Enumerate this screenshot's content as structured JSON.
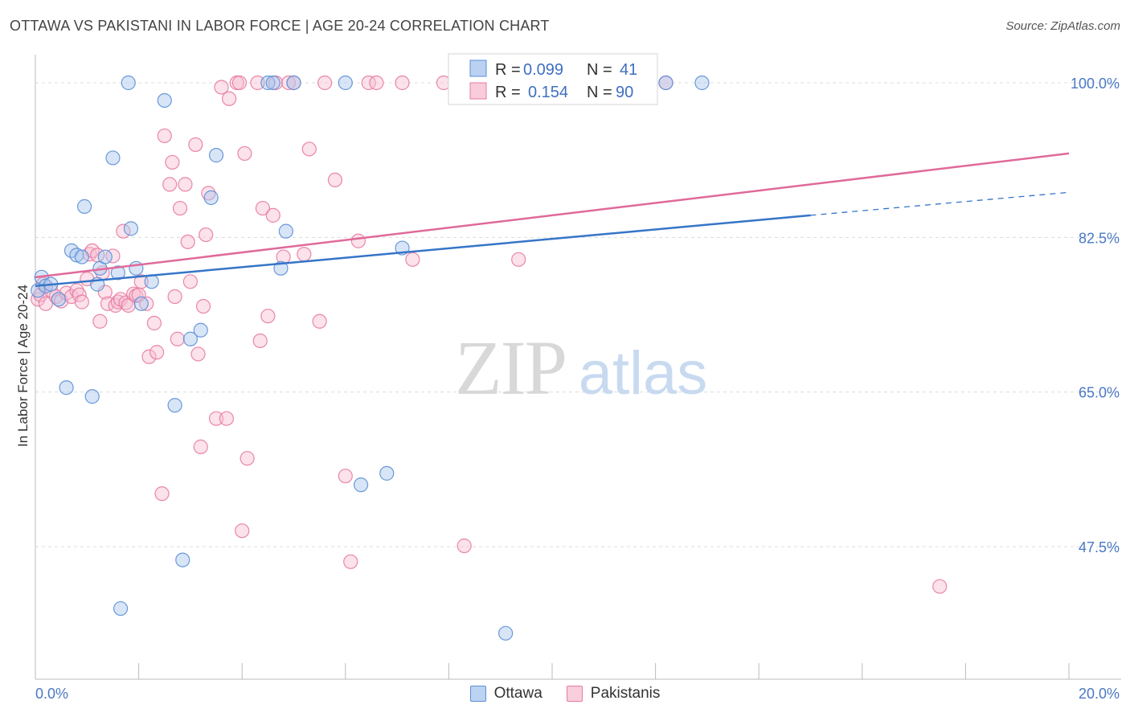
{
  "title": "OTTAWA VS PAKISTANI IN LABOR FORCE | AGE 20-24 CORRELATION CHART",
  "source": "Source: ZipAtlas.com",
  "watermark": {
    "zip": "ZIP",
    "atlas": "atlas"
  },
  "colors": {
    "ottawa": "#5b8fd6",
    "ottawa_fill": "#a9c6ee",
    "pakistanis": "#e87aa0",
    "pakistanis_fill": "#f6bfd2",
    "ottawa_line": "#3575c8",
    "pakistanis_line": "#e0699a",
    "tick": "#4a78c4"
  },
  "legend": {
    "ottawa": {
      "r_label": "R = ",
      "r_value": "0.099",
      "n_label": "N = ",
      "n_value": "41"
    },
    "pakistanis": {
      "r_label": "R = ",
      "r_value": "0.154",
      "n_label": "N = ",
      "n_value": "90"
    }
  },
  "chart_data": {
    "type": "scatter",
    "xlabel": "",
    "ylabel": "In Labor Force | Age 20-24",
    "xlim": [
      0,
      20
    ],
    "ylim": [
      32.5,
      103
    ],
    "x_tick_labels": [
      "0.0%",
      "20.0%"
    ],
    "y_ticks": [
      47.5,
      65.0,
      82.5,
      100.0
    ],
    "y_tick_labels": [
      "47.5%",
      "65.0%",
      "82.5%",
      "100.0%"
    ],
    "grid": true,
    "legend_position": "top-center",
    "series": [
      {
        "name": "Ottawa",
        "points": [
          [
            0.05,
            76.5
          ],
          [
            0.12,
            78.0
          ],
          [
            0.2,
            77.0
          ],
          [
            0.3,
            77.2
          ],
          [
            0.45,
            75.5
          ],
          [
            0.6,
            65.5
          ],
          [
            0.7,
            81.0
          ],
          [
            0.8,
            80.5
          ],
          [
            0.9,
            80.3
          ],
          [
            0.95,
            86.0
          ],
          [
            1.1,
            64.5
          ],
          [
            1.2,
            77.2
          ],
          [
            1.25,
            79.0
          ],
          [
            1.35,
            80.3
          ],
          [
            1.5,
            91.5
          ],
          [
            1.6,
            78.5
          ],
          [
            1.65,
            40.5
          ],
          [
            1.8,
            100.0
          ],
          [
            1.85,
            83.5
          ],
          [
            1.95,
            79.0
          ],
          [
            2.05,
            75.0
          ],
          [
            2.25,
            77.5
          ],
          [
            2.5,
            98.0
          ],
          [
            2.7,
            63.5
          ],
          [
            2.85,
            46.0
          ],
          [
            3.0,
            71.0
          ],
          [
            3.2,
            72.0
          ],
          [
            3.4,
            87.0
          ],
          [
            3.5,
            91.8
          ],
          [
            4.5,
            100.0
          ],
          [
            4.6,
            100.0
          ],
          [
            4.75,
            79.0
          ],
          [
            4.85,
            83.2
          ],
          [
            5.0,
            100.0
          ],
          [
            6.0,
            100.0
          ],
          [
            6.3,
            54.5
          ],
          [
            6.8,
            55.8
          ],
          [
            7.1,
            81.3
          ],
          [
            9.1,
            37.7
          ],
          [
            12.2,
            100.0
          ],
          [
            12.9,
            100.0
          ]
        ],
        "trend": {
          "x": [
            0,
            15.0
          ],
          "y": [
            77.0,
            85.0
          ],
          "dashed_to": [
            20.0,
            87.6
          ]
        }
      },
      {
        "name": "Pakistanis",
        "points": [
          [
            0.05,
            75.5
          ],
          [
            0.1,
            76.0
          ],
          [
            0.15,
            77.2
          ],
          [
            0.2,
            75.0
          ],
          [
            0.3,
            76.5
          ],
          [
            0.4,
            75.8
          ],
          [
            0.5,
            75.3
          ],
          [
            0.6,
            76.2
          ],
          [
            0.7,
            75.8
          ],
          [
            0.8,
            76.5
          ],
          [
            0.85,
            76.0
          ],
          [
            0.9,
            75.2
          ],
          [
            1.0,
            77.8
          ],
          [
            1.05,
            80.6
          ],
          [
            1.1,
            81.0
          ],
          [
            1.2,
            80.5
          ],
          [
            1.25,
            73.0
          ],
          [
            1.3,
            78.5
          ],
          [
            1.35,
            76.3
          ],
          [
            1.4,
            75.0
          ],
          [
            1.5,
            80.4
          ],
          [
            1.55,
            74.8
          ],
          [
            1.6,
            75.2
          ],
          [
            1.65,
            75.5
          ],
          [
            1.7,
            83.2
          ],
          [
            1.75,
            75.1
          ],
          [
            1.8,
            74.8
          ],
          [
            1.9,
            76.1
          ],
          [
            1.95,
            75.9
          ],
          [
            2.0,
            76.0
          ],
          [
            2.05,
            77.5
          ],
          [
            2.15,
            75.0
          ],
          [
            2.2,
            69.0
          ],
          [
            2.3,
            72.8
          ],
          [
            2.35,
            69.5
          ],
          [
            2.45,
            53.5
          ],
          [
            2.5,
            94.0
          ],
          [
            2.6,
            88.5
          ],
          [
            2.65,
            91.0
          ],
          [
            2.7,
            75.8
          ],
          [
            2.75,
            71.0
          ],
          [
            2.8,
            85.8
          ],
          [
            2.9,
            88.5
          ],
          [
            2.95,
            82.0
          ],
          [
            3.0,
            77.5
          ],
          [
            3.1,
            93.0
          ],
          [
            3.15,
            69.3
          ],
          [
            3.2,
            58.8
          ],
          [
            3.25,
            74.7
          ],
          [
            3.3,
            82.8
          ],
          [
            3.35,
            87.5
          ],
          [
            3.5,
            62.0
          ],
          [
            3.6,
            99.5
          ],
          [
            3.7,
            62.0
          ],
          [
            3.75,
            98.2
          ],
          [
            3.9,
            100.0
          ],
          [
            3.95,
            100.0
          ],
          [
            4.0,
            49.3
          ],
          [
            4.05,
            92.0
          ],
          [
            4.1,
            57.5
          ],
          [
            4.3,
            100.0
          ],
          [
            4.35,
            70.8
          ],
          [
            4.4,
            85.8
          ],
          [
            4.5,
            73.6
          ],
          [
            4.6,
            85.0
          ],
          [
            4.65,
            100.0
          ],
          [
            4.8,
            80.3
          ],
          [
            4.9,
            100.0
          ],
          [
            5.0,
            100.0
          ],
          [
            5.2,
            80.6
          ],
          [
            5.3,
            92.5
          ],
          [
            5.5,
            73.0
          ],
          [
            5.6,
            100.0
          ],
          [
            5.8,
            89.0
          ],
          [
            6.0,
            55.5
          ],
          [
            6.1,
            45.8
          ],
          [
            6.25,
            82.1
          ],
          [
            6.45,
            100.0
          ],
          [
            6.6,
            100.0
          ],
          [
            7.1,
            100.0
          ],
          [
            7.3,
            80.0
          ],
          [
            7.9,
            100.0
          ],
          [
            8.3,
            47.6
          ],
          [
            8.8,
            100.0
          ],
          [
            9.0,
            100.0
          ],
          [
            9.35,
            80.0
          ],
          [
            9.6,
            100.0
          ],
          [
            10.5,
            100.0
          ],
          [
            12.2,
            100.0
          ],
          [
            17.5,
            43.0
          ]
        ],
        "trend": {
          "x": [
            0,
            20.0
          ],
          "y": [
            78.0,
            92.0
          ]
        }
      }
    ]
  }
}
